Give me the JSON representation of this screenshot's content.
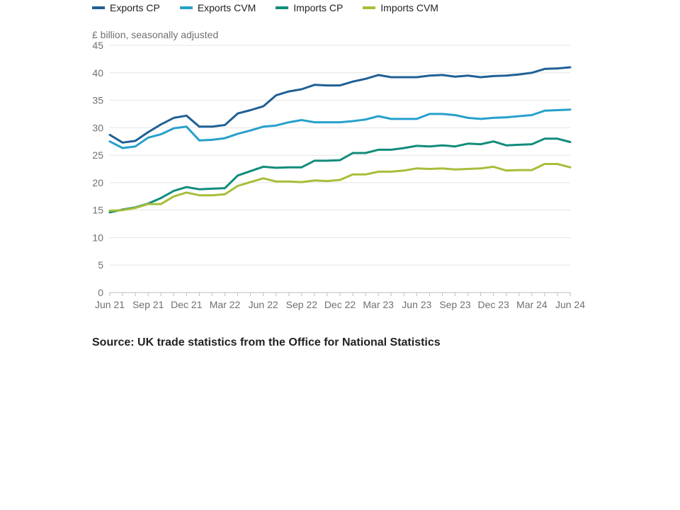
{
  "chart_data": {
    "type": "line",
    "ylabel": "£ billion, seasonally adjusted",
    "xlabel": "",
    "ylim": [
      0,
      45
    ],
    "y_ticks": [
      0,
      5,
      10,
      15,
      20,
      25,
      30,
      35,
      40,
      45
    ],
    "grid": "horizontal",
    "legend_position": "top-left",
    "x": [
      "Jun 21",
      "Jul 21",
      "Aug 21",
      "Sep 21",
      "Oct 21",
      "Nov 21",
      "Dec 21",
      "Jan 22",
      "Feb 22",
      "Mar 22",
      "Apr 22",
      "May 22",
      "Jun 22",
      "Jul 22",
      "Aug 22",
      "Sep 22",
      "Oct 22",
      "Nov 22",
      "Dec 22",
      "Jan 23",
      "Feb 23",
      "Mar 23",
      "Apr 23",
      "May 23",
      "Jun 23",
      "Jul 23",
      "Aug 23",
      "Sep 23",
      "Oct 23",
      "Nov 23",
      "Dec 23",
      "Jan 24",
      "Feb 24",
      "Mar 24",
      "Apr 24",
      "May 24",
      "Jun 24"
    ],
    "x_tick_labels": [
      "Jun 21",
      "Sep 21",
      "Dec 21",
      "Mar 22",
      "Jun 22",
      "Sep 22",
      "Dec 22",
      "Mar 23",
      "Jun 23",
      "Sep 23",
      "Dec 23",
      "Mar 24",
      "Jun 24"
    ],
    "series": [
      {
        "name": "Exports CP",
        "color": "#206095",
        "values": [
          28.7,
          27.3,
          27.6,
          29.2,
          30.6,
          31.8,
          32.2,
          30.2,
          30.2,
          30.5,
          32.6,
          33.2,
          33.9,
          35.9,
          36.6,
          37.0,
          37.8,
          37.7,
          37.7,
          38.4,
          38.9,
          39.6,
          39.2,
          39.2,
          39.2,
          39.5,
          39.6,
          39.3,
          39.5,
          39.2,
          39.4,
          39.5,
          39.7,
          40.0,
          40.7,
          40.8,
          41.0
        ]
      },
      {
        "name": "Exports CVM",
        "color": "#27A0CC",
        "values": [
          27.5,
          26.3,
          26.6,
          28.2,
          28.8,
          29.9,
          30.2,
          27.7,
          27.8,
          28.1,
          28.9,
          29.5,
          30.2,
          30.4,
          31.0,
          31.4,
          31.0,
          31.0,
          31.0,
          31.2,
          31.5,
          32.1,
          31.6,
          31.6,
          31.6,
          32.5,
          32.5,
          32.3,
          31.8,
          31.6,
          31.8,
          31.9,
          32.1,
          32.3,
          33.1,
          33.2,
          33.3
        ]
      },
      {
        "name": "Imports CP",
        "color": "#118C7B",
        "values": [
          14.6,
          15.1,
          15.5,
          16.2,
          17.2,
          18.5,
          19.2,
          18.8,
          18.9,
          19.0,
          21.3,
          22.1,
          22.9,
          22.7,
          22.8,
          22.8,
          24.0,
          24.0,
          24.1,
          25.4,
          25.4,
          26.0,
          26.0,
          26.3,
          26.7,
          26.6,
          26.8,
          26.6,
          27.1,
          27.0,
          27.5,
          26.8,
          26.9,
          27.0,
          28.0,
          28.0,
          27.4
        ]
      },
      {
        "name": "Imports CVM",
        "color": "#A8BD3A",
        "values": [
          14.9,
          15.0,
          15.4,
          16.1,
          16.1,
          17.5,
          18.2,
          17.7,
          17.7,
          17.9,
          19.4,
          20.1,
          20.8,
          20.2,
          20.2,
          20.1,
          20.4,
          20.3,
          20.5,
          21.5,
          21.5,
          22.0,
          22.0,
          22.2,
          22.6,
          22.5,
          22.6,
          22.4,
          22.5,
          22.6,
          22.9,
          22.2,
          22.3,
          22.3,
          23.4,
          23.4,
          22.8
        ]
      }
    ]
  },
  "source": "Source: UK trade statistics from the Office for National Statistics"
}
